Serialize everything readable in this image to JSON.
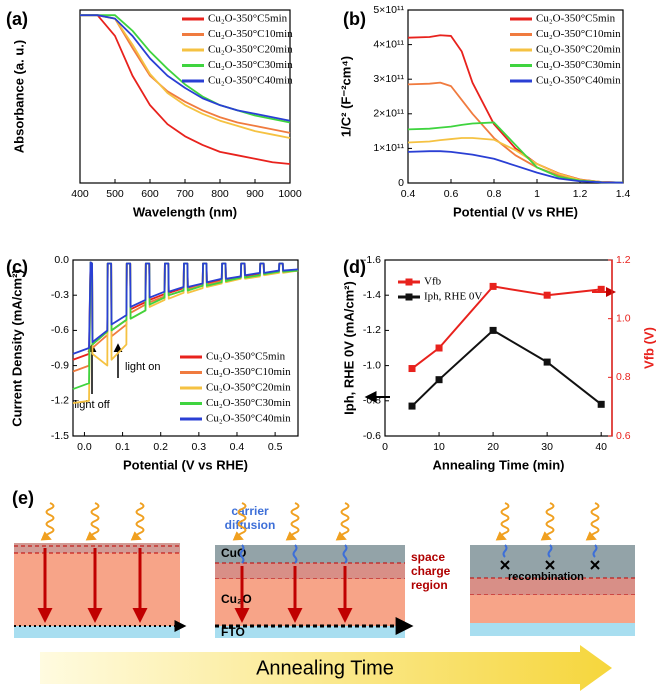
{
  "chart_data": [
    {
      "type": "line",
      "panel_label": "(a)",
      "xlabel": "Wavelength (nm)",
      "ylabel": "Absorbance (a. u.)",
      "xlim": [
        400,
        1000
      ],
      "xticks": [
        400,
        500,
        600,
        700,
        800,
        900,
        1000
      ],
      "ylim": [
        0,
        1
      ],
      "x": [
        400,
        450,
        500,
        550,
        600,
        650,
        700,
        750,
        800,
        850,
        900,
        950,
        1000
      ],
      "series": [
        {
          "name": "Cu₂O-350°C5min",
          "color": "#e8221d",
          "values": [
            0.97,
            0.97,
            0.85,
            0.62,
            0.45,
            0.34,
            0.27,
            0.22,
            0.18,
            0.16,
            0.14,
            0.12,
            0.11
          ]
        },
        {
          "name": "Cu₂O-350°C10min",
          "color": "#f07b3f",
          "values": [
            0.97,
            0.97,
            0.95,
            0.78,
            0.62,
            0.53,
            0.47,
            0.42,
            0.38,
            0.35,
            0.33,
            0.31,
            0.29
          ]
        },
        {
          "name": "Cu₂O-350°C20min",
          "color": "#f5c242",
          "values": [
            0.97,
            0.97,
            0.95,
            0.8,
            0.63,
            0.52,
            0.45,
            0.4,
            0.36,
            0.33,
            0.3,
            0.28,
            0.26
          ]
        },
        {
          "name": "Cu₂O-350°C30min",
          "color": "#3fd43f",
          "values": [
            0.97,
            0.97,
            0.97,
            0.88,
            0.76,
            0.66,
            0.57,
            0.5,
            0.45,
            0.42,
            0.39,
            0.37,
            0.35
          ]
        },
        {
          "name": "Cu₂O-350°C40min",
          "color": "#2a3fd4",
          "values": [
            0.97,
            0.97,
            0.95,
            0.85,
            0.72,
            0.62,
            0.55,
            0.49,
            0.45,
            0.42,
            0.4,
            0.38,
            0.36
          ]
        }
      ]
    },
    {
      "type": "line",
      "panel_label": "(b)",
      "xlabel": "Potential (V vs RHE)",
      "ylabel": "1/C² (F⁻²cm⁴)",
      "xlim": [
        0.4,
        1.4
      ],
      "xticks": [
        0.4,
        0.6,
        0.8,
        1.0,
        1.2,
        1.4
      ],
      "ylim": [
        0,
        500000000000
      ],
      "yticks": [
        0,
        {
          "value": 100000000000,
          "label": "1×10¹¹"
        },
        {
          "value": 200000000000,
          "label": "2×10¹¹"
        },
        {
          "value": 300000000000,
          "label": "3×10¹¹"
        },
        {
          "value": 400000000000,
          "label": "4×10¹¹"
        },
        {
          "value": 500000000000,
          "label": "5×10¹¹"
        }
      ],
      "x": [
        0.4,
        0.5,
        0.55,
        0.6,
        0.65,
        0.7,
        0.8,
        0.9,
        1.0,
        1.1,
        1.2,
        1.3,
        1.4
      ],
      "series": [
        {
          "name": "Cu₂O-350°C5min",
          "color": "#e8221d",
          "values": [
            420000000000,
            422000000000,
            427000000000,
            425000000000,
            380000000000,
            290000000000,
            170000000000,
            100000000000,
            55000000000,
            28000000000,
            10000000000,
            3000000000,
            1000000000
          ]
        },
        {
          "name": "Cu₂O-350°C10min",
          "color": "#f07b3f",
          "values": [
            285000000000,
            287000000000,
            290000000000,
            280000000000,
            240000000000,
            200000000000,
            130000000000,
            80000000000,
            45000000000,
            22000000000,
            9000000000,
            3000000000,
            1000000000
          ]
        },
        {
          "name": "Cu₂O-350°C20min",
          "color": "#f5c242",
          "values": [
            117000000000,
            120000000000,
            124000000000,
            127000000000,
            130000000000,
            130000000000,
            125000000000,
            95000000000,
            55000000000,
            27000000000,
            9000000000,
            3000000000,
            1000000000
          ]
        },
        {
          "name": "Cu₂O-350°C30min",
          "color": "#3fd43f",
          "values": [
            155000000000,
            157000000000,
            160000000000,
            163000000000,
            168000000000,
            172000000000,
            175000000000,
            110000000000,
            45000000000,
            18000000000,
            7000000000,
            2000000000,
            1000000000
          ]
        },
        {
          "name": "Cu₂O-350°C40min",
          "color": "#2a3fd4",
          "values": [
            90000000000,
            92000000000,
            92000000000,
            90000000000,
            86000000000,
            82000000000,
            70000000000,
            50000000000,
            30000000000,
            13000000000,
            5000000000,
            2000000000,
            1000000000
          ]
        }
      ]
    },
    {
      "type": "line",
      "panel_label": "(c)",
      "xlabel": "Potential (V vs RHE)",
      "ylabel": "Current Density (mA/cm²)",
      "annotations": [
        "light off",
        "light on"
      ],
      "xlim": [
        -0.03,
        0.56
      ],
      "xticks": [
        {
          "value": 0,
          "label": "0.0"
        },
        0.1,
        0.2,
        0.3,
        0.4,
        0.5
      ],
      "ylim": [
        -1.5,
        0
      ],
      "yticks": [
        -1.5,
        -1.2,
        -0.9,
        -0.6,
        -0.3,
        {
          "value": 0,
          "label": "0.0"
        }
      ],
      "x": [
        -0.03,
        0.012,
        0.016,
        0.02,
        0.021,
        0.06,
        0.061,
        0.07,
        0.071,
        0.11,
        0.111,
        0.12,
        0.121,
        0.16,
        0.161,
        0.17,
        0.171,
        0.21,
        0.211,
        0.22,
        0.221,
        0.26,
        0.261,
        0.27,
        0.271,
        0.31,
        0.311,
        0.32,
        0.321,
        0.36,
        0.361,
        0.37,
        0.371,
        0.41,
        0.411,
        0.42,
        0.421,
        0.46,
        0.461,
        0.47,
        0.471,
        0.51,
        0.511,
        0.52,
        0.521,
        0.56
      ],
      "series": [
        {
          "name": "Cu₂O-350°C5min",
          "color": "#e8221d",
          "values": [
            -0.85,
            -0.8,
            -0.02,
            -0.03,
            -0.72,
            -0.61,
            -0.03,
            -0.03,
            -0.6,
            -0.51,
            -0.03,
            -0.03,
            -0.42,
            -0.36,
            -0.03,
            -0.03,
            -0.34,
            -0.29,
            -0.03,
            -0.03,
            -0.28,
            -0.24,
            -0.03,
            -0.03,
            -0.24,
            -0.2,
            -0.03,
            -0.03,
            -0.2,
            -0.17,
            -0.03,
            -0.03,
            -0.17,
            -0.14,
            -0.03,
            -0.03,
            -0.14,
            -0.12,
            -0.03,
            -0.03,
            -0.12,
            -0.1,
            -0.03,
            -0.03,
            -0.1,
            -0.09
          ]
        },
        {
          "name": "Cu₂O-350°C10min",
          "color": "#f07b3f",
          "values": [
            -0.95,
            -0.9,
            -0.02,
            -0.03,
            -0.75,
            -0.64,
            -0.03,
            -0.03,
            -0.65,
            -0.55,
            -0.03,
            -0.03,
            -0.45,
            -0.38,
            -0.03,
            -0.03,
            -0.36,
            -0.31,
            -0.03,
            -0.03,
            -0.3,
            -0.26,
            -0.03,
            -0.03,
            -0.25,
            -0.21,
            -0.03,
            -0.03,
            -0.21,
            -0.18,
            -0.03,
            -0.03,
            -0.18,
            -0.15,
            -0.03,
            -0.03,
            -0.15,
            -0.13,
            -0.03,
            -0.03,
            -0.12,
            -0.1,
            -0.03,
            -0.03,
            -0.1,
            -0.09
          ]
        },
        {
          "name": "Cu₂O-350°C20min",
          "color": "#f5c242",
          "values": [
            -1.22,
            -1.2,
            -0.02,
            -0.03,
            -0.8,
            -0.9,
            -0.03,
            -0.03,
            -0.85,
            -0.72,
            -0.03,
            -0.03,
            -0.5,
            -0.43,
            -0.03,
            -0.03,
            -0.4,
            -0.34,
            -0.03,
            -0.03,
            -0.33,
            -0.28,
            -0.03,
            -0.03,
            -0.28,
            -0.24,
            -0.03,
            -0.03,
            -0.23,
            -0.2,
            -0.03,
            -0.03,
            -0.19,
            -0.16,
            -0.03,
            -0.03,
            -0.16,
            -0.14,
            -0.03,
            -0.03,
            -0.13,
            -0.11,
            -0.03,
            -0.03,
            -0.11,
            -0.09
          ]
        },
        {
          "name": "Cu₂O-350°C30min",
          "color": "#3fd43f",
          "values": [
            -1.1,
            -1.05,
            -0.02,
            -0.03,
            -0.72,
            -0.61,
            -0.03,
            -0.03,
            -0.6,
            -0.51,
            -0.03,
            -0.03,
            -0.5,
            -0.43,
            -0.03,
            -0.03,
            -0.38,
            -0.32,
            -0.03,
            -0.03,
            -0.3,
            -0.26,
            -0.03,
            -0.03,
            -0.26,
            -0.22,
            -0.03,
            -0.03,
            -0.22,
            -0.19,
            -0.03,
            -0.03,
            -0.18,
            -0.15,
            -0.03,
            -0.03,
            -0.15,
            -0.13,
            -0.03,
            -0.03,
            -0.12,
            -0.1,
            -0.03,
            -0.03,
            -0.1,
            -0.09
          ]
        },
        {
          "name": "Cu₂O-350°C40min",
          "color": "#2a3fd4",
          "values": [
            -0.8,
            -0.75,
            -0.02,
            -0.03,
            -0.7,
            -0.6,
            -0.03,
            -0.03,
            -0.55,
            -0.47,
            -0.03,
            -0.03,
            -0.4,
            -0.34,
            -0.03,
            -0.03,
            -0.32,
            -0.27,
            -0.03,
            -0.03,
            -0.27,
            -0.23,
            -0.03,
            -0.03,
            -0.23,
            -0.2,
            -0.03,
            -0.03,
            -0.19,
            -0.16,
            -0.03,
            -0.03,
            -0.16,
            -0.14,
            -0.03,
            -0.03,
            -0.13,
            -0.11,
            -0.03,
            -0.03,
            -0.11,
            -0.09,
            -0.03,
            -0.03,
            -0.09,
            -0.08
          ]
        }
      ]
    },
    {
      "type": "line",
      "panel_label": "(d)",
      "xlabel": "Annealing Time (min)",
      "ylabel": "Iph, RHE 0V (mA/cm²)",
      "y2label": "Vfb (V)",
      "markers": true,
      "xlim": [
        0,
        42
      ],
      "xticks": [
        0,
        10,
        20,
        30,
        40
      ],
      "ylim": [
        -0.6,
        -1.6
      ],
      "yticks": [
        -0.6,
        -0.8,
        {
          "value": -1,
          "label": "-1.0"
        },
        -1.2,
        -1.4,
        -1.6
      ],
      "y2lim": [
        0.6,
        1.2
      ],
      "y2ticks": [
        0.6,
        0.8,
        {
          "value": 1,
          "label": "1.0"
        },
        1.2
      ],
      "x": [
        5,
        10,
        20,
        30,
        40
      ],
      "series": [
        {
          "name": "Vfb",
          "color": "#e8221d",
          "axis": "y2",
          "values": [
            0.83,
            0.9,
            1.11,
            1.08,
            1.1
          ]
        },
        {
          "name": "Iph, RHE 0V",
          "color": "#111111",
          "values": [
            -0.77,
            -0.92,
            -1.2,
            -1.02,
            -0.78
          ]
        }
      ]
    }
  ],
  "panel_e": {
    "panel_label": "(e)",
    "carrier_label": [
      "carrier",
      "diffusion"
    ],
    "cuo": "CuO",
    "space_charge_label": [
      "space",
      "charge",
      "region"
    ],
    "cu2o": "Cu₂O",
    "fto": "FTO",
    "recombination": "recombination",
    "arrow_label": "Annealing Time"
  }
}
